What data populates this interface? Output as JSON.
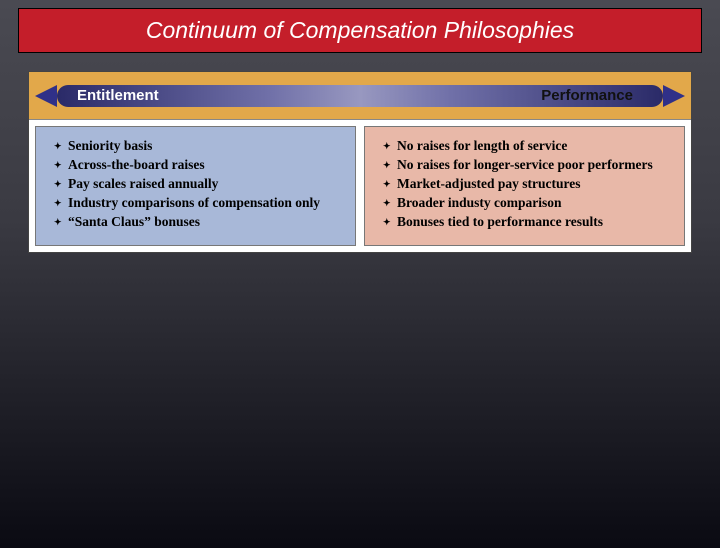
{
  "title": "Continuum of Compensation Philosophies",
  "continuum": {
    "left_label": "Entitlement",
    "right_label": "Performance",
    "bar_bg": "#e2a84a",
    "gradient_start": "#2a2a68",
    "gradient_mid": "#9898c0",
    "arrow_color": "#303088"
  },
  "left_box": {
    "bg": "#a8b8d8",
    "items": [
      "Seniority basis",
      "Across-the-board raises",
      "Pay scales raised annually",
      "Industry comparisons of compensation only",
      "“Santa Claus” bonuses"
    ]
  },
  "right_box": {
    "bg": "#e8b8a8",
    "items": [
      "No raises for length of service",
      "No raises for longer-service poor performers",
      "Market-adjusted pay structures",
      "Broader industy comparison",
      "Bonuses tied to performance results"
    ]
  },
  "colors": {
    "title_bg": "#c41e2a",
    "title_text": "#ffffff",
    "page_bg_top": "#4a4a52",
    "page_bg_bottom": "#0a0a12"
  },
  "typography": {
    "title_fontsize": 23,
    "label_fontsize": 15,
    "item_fontsize": 13.5
  }
}
